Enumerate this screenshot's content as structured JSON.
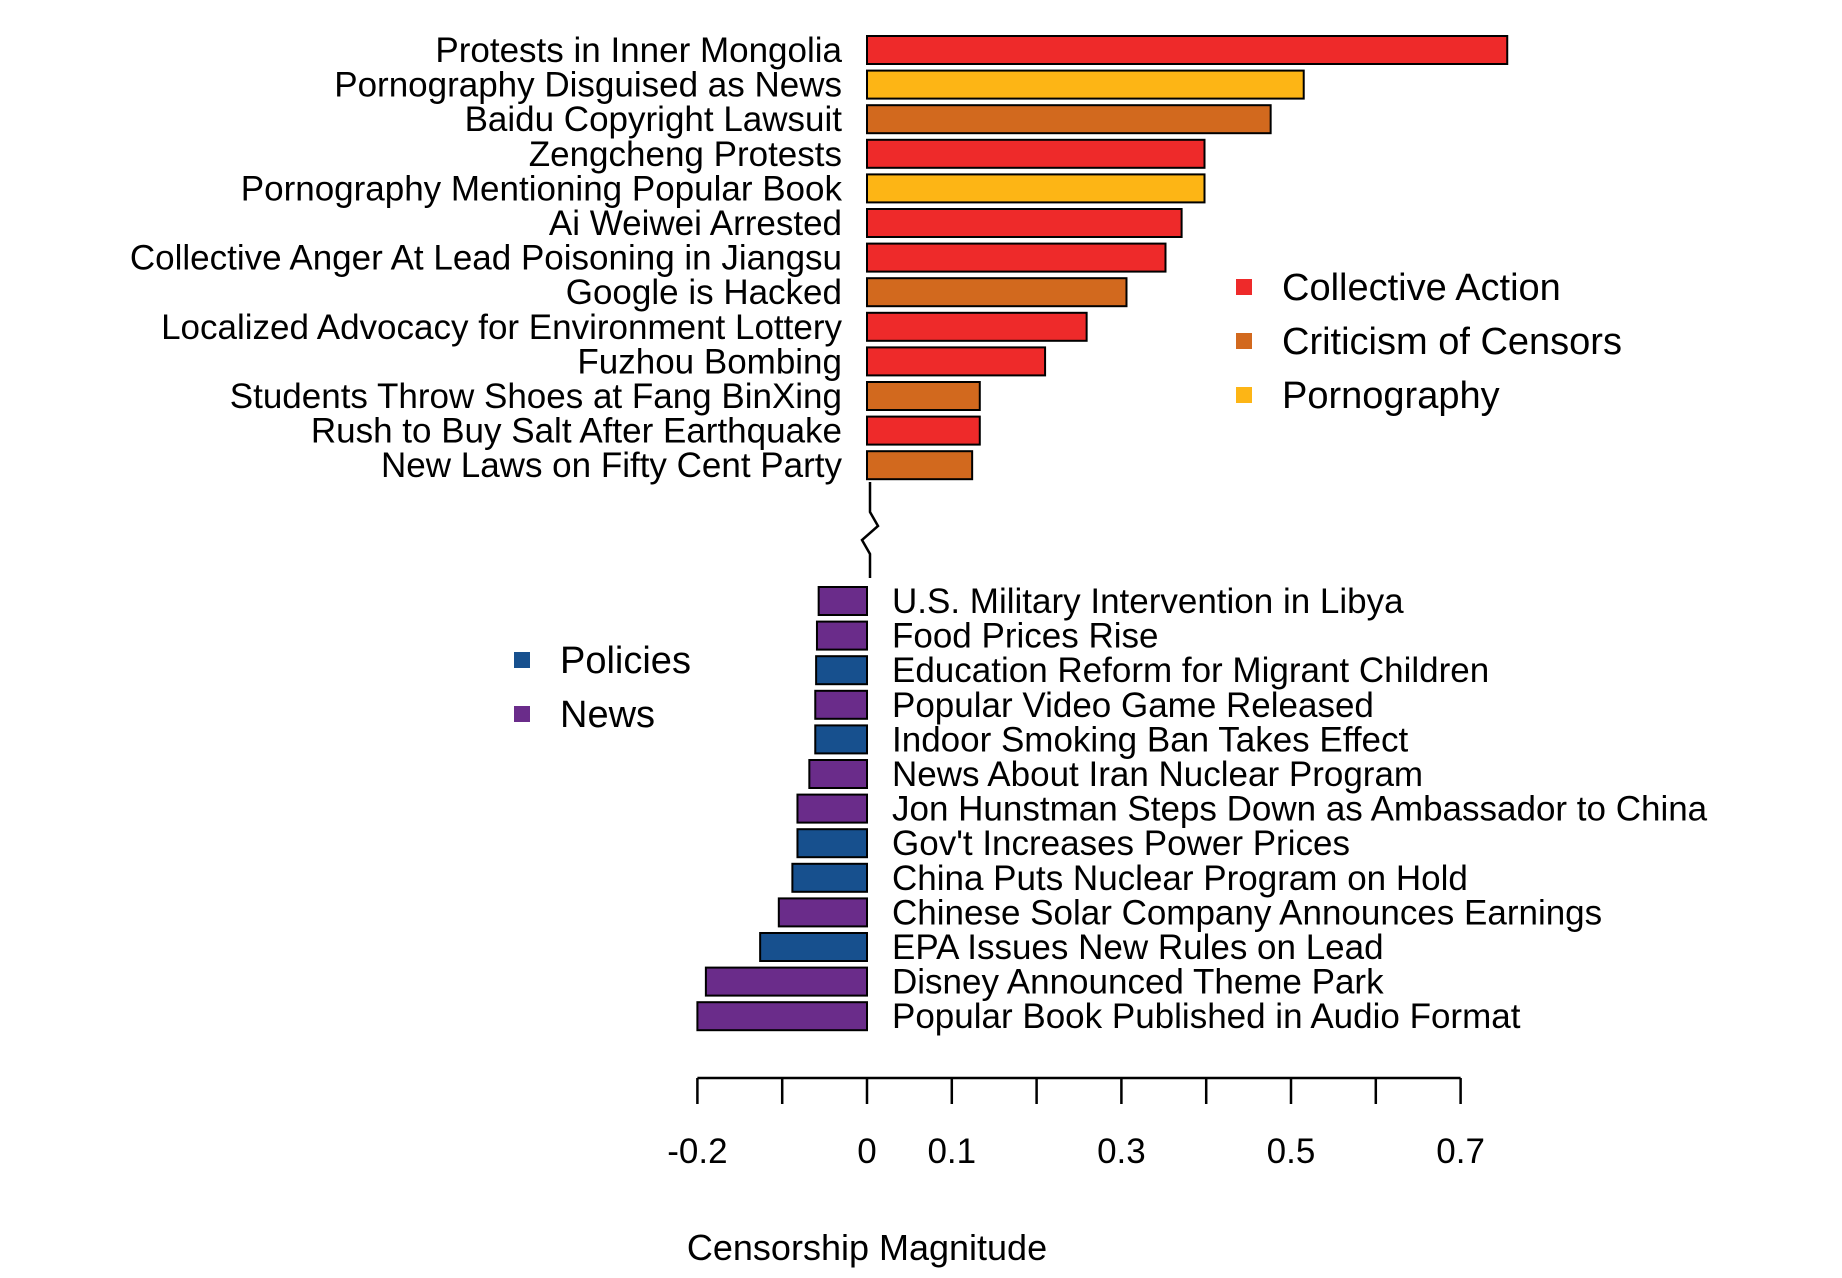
{
  "chart_data": {
    "type": "bar",
    "orientation": "horizontal",
    "xlabel": "Censorship Magnitude",
    "xlim": [
      -0.2,
      0.7
    ],
    "xticks": [
      -0.2,
      -0.1,
      0,
      0.1,
      0.2,
      0.3,
      0.4,
      0.5,
      0.6,
      0.7
    ],
    "xtick_labels": [
      "-0.2",
      "",
      "0",
      "0.1",
      "",
      "0.3",
      "",
      "0.5",
      "",
      "0.7"
    ],
    "grid": false,
    "axis_break": true,
    "categories": {
      "Collective Action": "#EE2A2A",
      "Criticism of Censors": "#D2691E",
      "Pornography": "#FDB515",
      "Policies": "#17508E",
      "News": "#6A2C8A"
    },
    "legends": [
      {
        "placement": "upper-right",
        "entries": [
          "Collective Action",
          "Criticism of Censors",
          "Pornography"
        ]
      },
      {
        "placement": "lower-left",
        "entries": [
          "Policies",
          "News"
        ]
      }
    ],
    "top_group": [
      {
        "label": "Protests in Inner Mongolia",
        "value": 0.755,
        "category": "Collective Action"
      },
      {
        "label": "Pornography Disguised as News",
        "value": 0.515,
        "category": "Pornography"
      },
      {
        "label": "Baidu Copyright Lawsuit",
        "value": 0.476,
        "category": "Criticism of Censors"
      },
      {
        "label": "Zengcheng Protests",
        "value": 0.398,
        "category": "Collective Action"
      },
      {
        "label": "Pornography Mentioning Popular Book",
        "value": 0.398,
        "category": "Pornography"
      },
      {
        "label": "Ai Weiwei Arrested",
        "value": 0.371,
        "category": "Collective Action"
      },
      {
        "label": "Collective Anger At Lead Poisoning in Jiangsu",
        "value": 0.352,
        "category": "Collective Action"
      },
      {
        "label": "Google is Hacked",
        "value": 0.306,
        "category": "Criticism of Censors"
      },
      {
        "label": "Localized Advocacy for Environment Lottery",
        "value": 0.259,
        "category": "Collective Action"
      },
      {
        "label": "Fuzhou Bombing",
        "value": 0.21,
        "category": "Collective Action"
      },
      {
        "label": "Students Throw Shoes at Fang BinXing",
        "value": 0.133,
        "category": "Criticism of Censors"
      },
      {
        "label": "Rush to Buy Salt After Earthquake",
        "value": 0.133,
        "category": "Collective Action"
      },
      {
        "label": "New Laws on Fifty Cent Party",
        "value": 0.124,
        "category": "Criticism of Censors"
      }
    ],
    "bottom_group": [
      {
        "label": "U.S. Military Intervention in Libya",
        "value": -0.057,
        "category": "News"
      },
      {
        "label": "Food Prices Rise",
        "value": -0.059,
        "category": "News"
      },
      {
        "label": "Education Reform for Migrant Children",
        "value": -0.06,
        "category": "Policies"
      },
      {
        "label": "Popular Video Game Released",
        "value": -0.061,
        "category": "News"
      },
      {
        "label": "Indoor Smoking Ban Takes Effect",
        "value": -0.061,
        "category": "Policies"
      },
      {
        "label": "News About Iran Nuclear Program",
        "value": -0.068,
        "category": "News"
      },
      {
        "label": "Jon Hunstman Steps Down as Ambassador to China",
        "value": -0.082,
        "category": "News"
      },
      {
        "label": "Gov't Increases Power Prices",
        "value": -0.082,
        "category": "Policies"
      },
      {
        "label": "China Puts Nuclear Program on Hold",
        "value": -0.088,
        "category": "Policies"
      },
      {
        "label": "Chinese Solar Company Announces Earnings",
        "value": -0.104,
        "category": "News"
      },
      {
        "label": "EPA Issues New Rules on Lead",
        "value": -0.126,
        "category": "Policies"
      },
      {
        "label": "Disney Announced Theme Park",
        "value": -0.19,
        "category": "News"
      },
      {
        "label": "Popular Book Published in Audio Format",
        "value": -0.2,
        "category": "News"
      }
    ]
  }
}
